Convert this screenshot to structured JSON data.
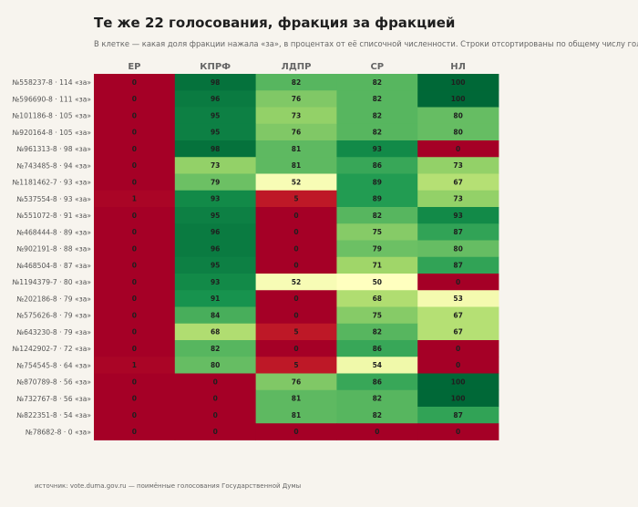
{
  "title": "Те же 22 голосования, фракция за фракцией",
  "subtitle": "В клетке — какая доля фракции нажала «за», в процентах от её списочной численности. Строки отсортированы по общему числу голосов",
  "footer": "источник: vote.duma.gov.ru — поимённые голосования Государственной Думы",
  "chart_data": {
    "type": "heatmap",
    "title": "Те же 22 голосования, фракция за фракцией",
    "columns": [
      "ЕР",
      "КПРФ",
      "ЛДПР",
      "СР",
      "НЛ"
    ],
    "rows": [
      "№558237-8 · 114 «за»",
      "№596690-8 · 111 «за»",
      "№101186-8 · 105 «за»",
      "№920164-8 · 105 «за»",
      "№961313-8 · 98 «за»",
      "№743485-8 · 94 «за»",
      "№1181462-7 · 93 «за»",
      "№537554-8 · 93 «за»",
      "№551072-8 · 91 «за»",
      "№468444-8 · 89 «за»",
      "№902191-8 · 88 «за»",
      "№468504-8 · 87 «за»",
      "№1194379-7 · 80 «за»",
      "№202186-8 · 79 «за»",
      "№575626-8 · 79 «за»",
      "№643230-8 · 79 «за»",
      "№1242902-7 · 72 «за»",
      "№754545-8 · 64 «за»",
      "№870789-8 · 56 «за»",
      "№732767-8 · 56 «за»",
      "№822351-8 · 54 «за»",
      "№78682-8 · 0 «за»"
    ],
    "values": [
      [
        0,
        98,
        82,
        82,
        100
      ],
      [
        0,
        96,
        76,
        82,
        100
      ],
      [
        0,
        95,
        73,
        82,
        80
      ],
      [
        0,
        95,
        76,
        82,
        80
      ],
      [
        0,
        98,
        81,
        93,
        0
      ],
      [
        0,
        73,
        81,
        86,
        73
      ],
      [
        0,
        79,
        52,
        89,
        67
      ],
      [
        1,
        93,
        5,
        89,
        73
      ],
      [
        0,
        95,
        0,
        82,
        93
      ],
      [
        0,
        96,
        0,
        75,
        87
      ],
      [
        0,
        96,
        0,
        79,
        80
      ],
      [
        0,
        95,
        0,
        71,
        87
      ],
      [
        0,
        93,
        52,
        50,
        0
      ],
      [
        0,
        91,
        0,
        68,
        53
      ],
      [
        0,
        84,
        0,
        75,
        67
      ],
      [
        0,
        68,
        5,
        82,
        67
      ],
      [
        0,
        82,
        0,
        86,
        0
      ],
      [
        1,
        80,
        5,
        54,
        0
      ],
      [
        0,
        0,
        76,
        86,
        100
      ],
      [
        0,
        0,
        81,
        82,
        100
      ],
      [
        0,
        0,
        81,
        82,
        87
      ],
      [
        0,
        0,
        0,
        0,
        0
      ]
    ],
    "value_range": [
      0,
      100
    ],
    "colormap": "RdYlGn",
    "colors": {
      "low": "#a50026",
      "mid": "#ffffbf",
      "high": "#006837",
      "text": "#1f1f1f"
    }
  }
}
